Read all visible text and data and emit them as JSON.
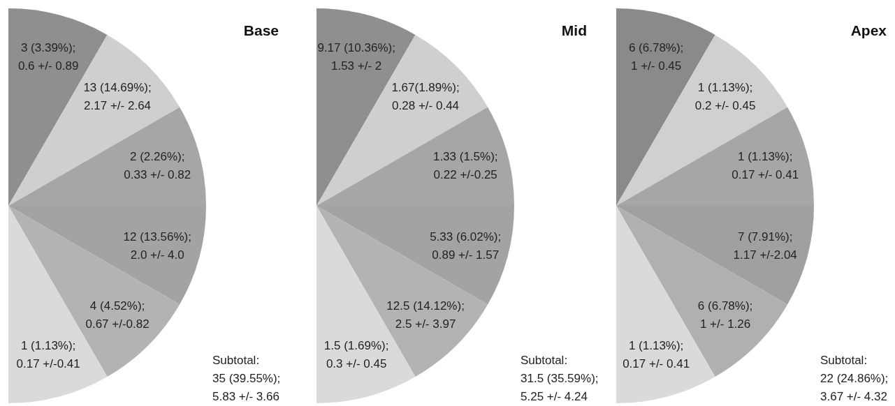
{
  "chart_data": [
    {
      "type": "other",
      "title": "Base",
      "values": [
        3,
        13,
        2,
        12,
        4,
        1
      ],
      "value_labels": [
        "3 (3.39%);\n0.6 +/- 0.89",
        "13 (14.69%);\n2.17 +/- 2.64",
        "2 (2.26%);\n0.33 +/- 0.82",
        "12 (13.56%);\n2.0 +/- 4.0",
        "4 (4.52%);\n0.67 +/-0.82",
        "1 (1.13%);\n0.17 +/-0.41"
      ],
      "colors": [
        "#8f8f8f",
        "#cfcfcf",
        "#a6a6a6",
        "#a3a3a3",
        "#b3b3b3",
        "#dadada"
      ],
      "annotations": [
        "Subtotal:\n35 (39.55%);\n5.83 +/- 3.66"
      ]
    },
    {
      "type": "other",
      "title": "Mid",
      "values": [
        9.17,
        1.67,
        1.33,
        5.33,
        12.5,
        1.5
      ],
      "value_labels": [
        "9.17 (10.36%);\n1.53 +/- 2",
        "1.67(1.89%);\n0.28 +/- 0.44",
        "1.33 (1.5%);\n0.22 +/-0.25",
        "5.33 (6.02%);\n0.89 +/- 1.57",
        "12.5 (14.12%);\n2.5 +/- 3.97",
        "1.5 (1.69%);\n0.3 +/- 0.45"
      ],
      "colors": [
        "#8f8f8f",
        "#cfcfcf",
        "#a6a6a6",
        "#a3a3a3",
        "#b3b3b3",
        "#dadada"
      ],
      "annotations": [
        "Subtotal:\n31.5 (35.59%);\n5.25 +/- 4.24"
      ]
    },
    {
      "type": "other",
      "title": "Apex",
      "values": [
        6,
        1,
        1,
        7,
        6,
        1
      ],
      "value_labels": [
        "6 (6.78%);\n1 +/- 0.45",
        "1 (1.13%);\n0.2 +/- 0.45",
        "1 (1.13%);\n0.17 +/- 0.41",
        "7 (7.91%);\n1.17 +/-2.04",
        "6 (6.78%);\n1 +/- 1.26",
        "1 (1.13%);\n0.17 +/- 0.41"
      ],
      "colors": [
        "#8a8a8a",
        "#d0d0d0",
        "#a6a6a6",
        "#a0a0a0",
        "#b0b0b0",
        "#dadada"
      ],
      "annotations": [
        "Subtotal:\n22 (24.86%);\n3.67 +/- 4.32"
      ]
    }
  ]
}
